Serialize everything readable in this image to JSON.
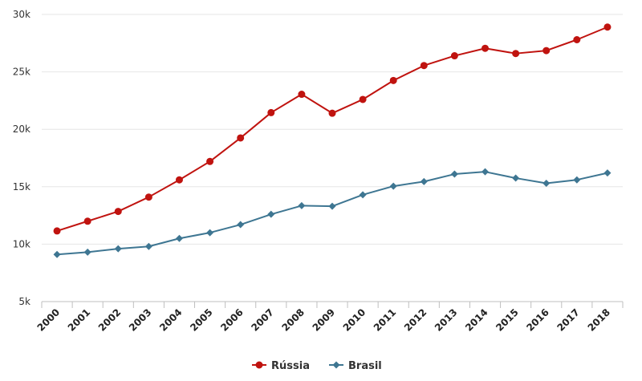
{
  "chart_data": {
    "type": "line",
    "title": "",
    "xlabel": "",
    "ylabel": "",
    "categories": [
      "2000",
      "2001",
      "2002",
      "2003",
      "2004",
      "2005",
      "2006",
      "2007",
      "2008",
      "2009",
      "2010",
      "2011",
      "2012",
      "2013",
      "2014",
      "2015",
      "2016",
      "2017",
      "2018"
    ],
    "ylim": [
      5000,
      30000
    ],
    "y_ticks": [
      {
        "value": 5000,
        "label": "5k"
      },
      {
        "value": 10000,
        "label": "10k"
      },
      {
        "value": 15000,
        "label": "15k"
      },
      {
        "value": 20000,
        "label": "20k"
      },
      {
        "value": 25000,
        "label": "25k"
      },
      {
        "value": 30000,
        "label": "30k"
      }
    ],
    "grid": true,
    "legend_position": "bottom-center",
    "series": [
      {
        "name": "Rússia",
        "color": "#c0130f",
        "marker": "circle",
        "values": [
          11150,
          12000,
          12850,
          14100,
          15600,
          17200,
          19250,
          21450,
          23050,
          21400,
          22600,
          24250,
          25550,
          26400,
          27050,
          26600,
          26850,
          27800,
          28900
        ]
      },
      {
        "name": "Brasil",
        "color": "#3e7692",
        "marker": "diamond",
        "values": [
          9100,
          9300,
          9600,
          9800,
          10500,
          11000,
          11700,
          12600,
          13350,
          13300,
          14300,
          15050,
          15450,
          16100,
          16300,
          15750,
          15300,
          15600,
          16200
        ]
      }
    ]
  }
}
